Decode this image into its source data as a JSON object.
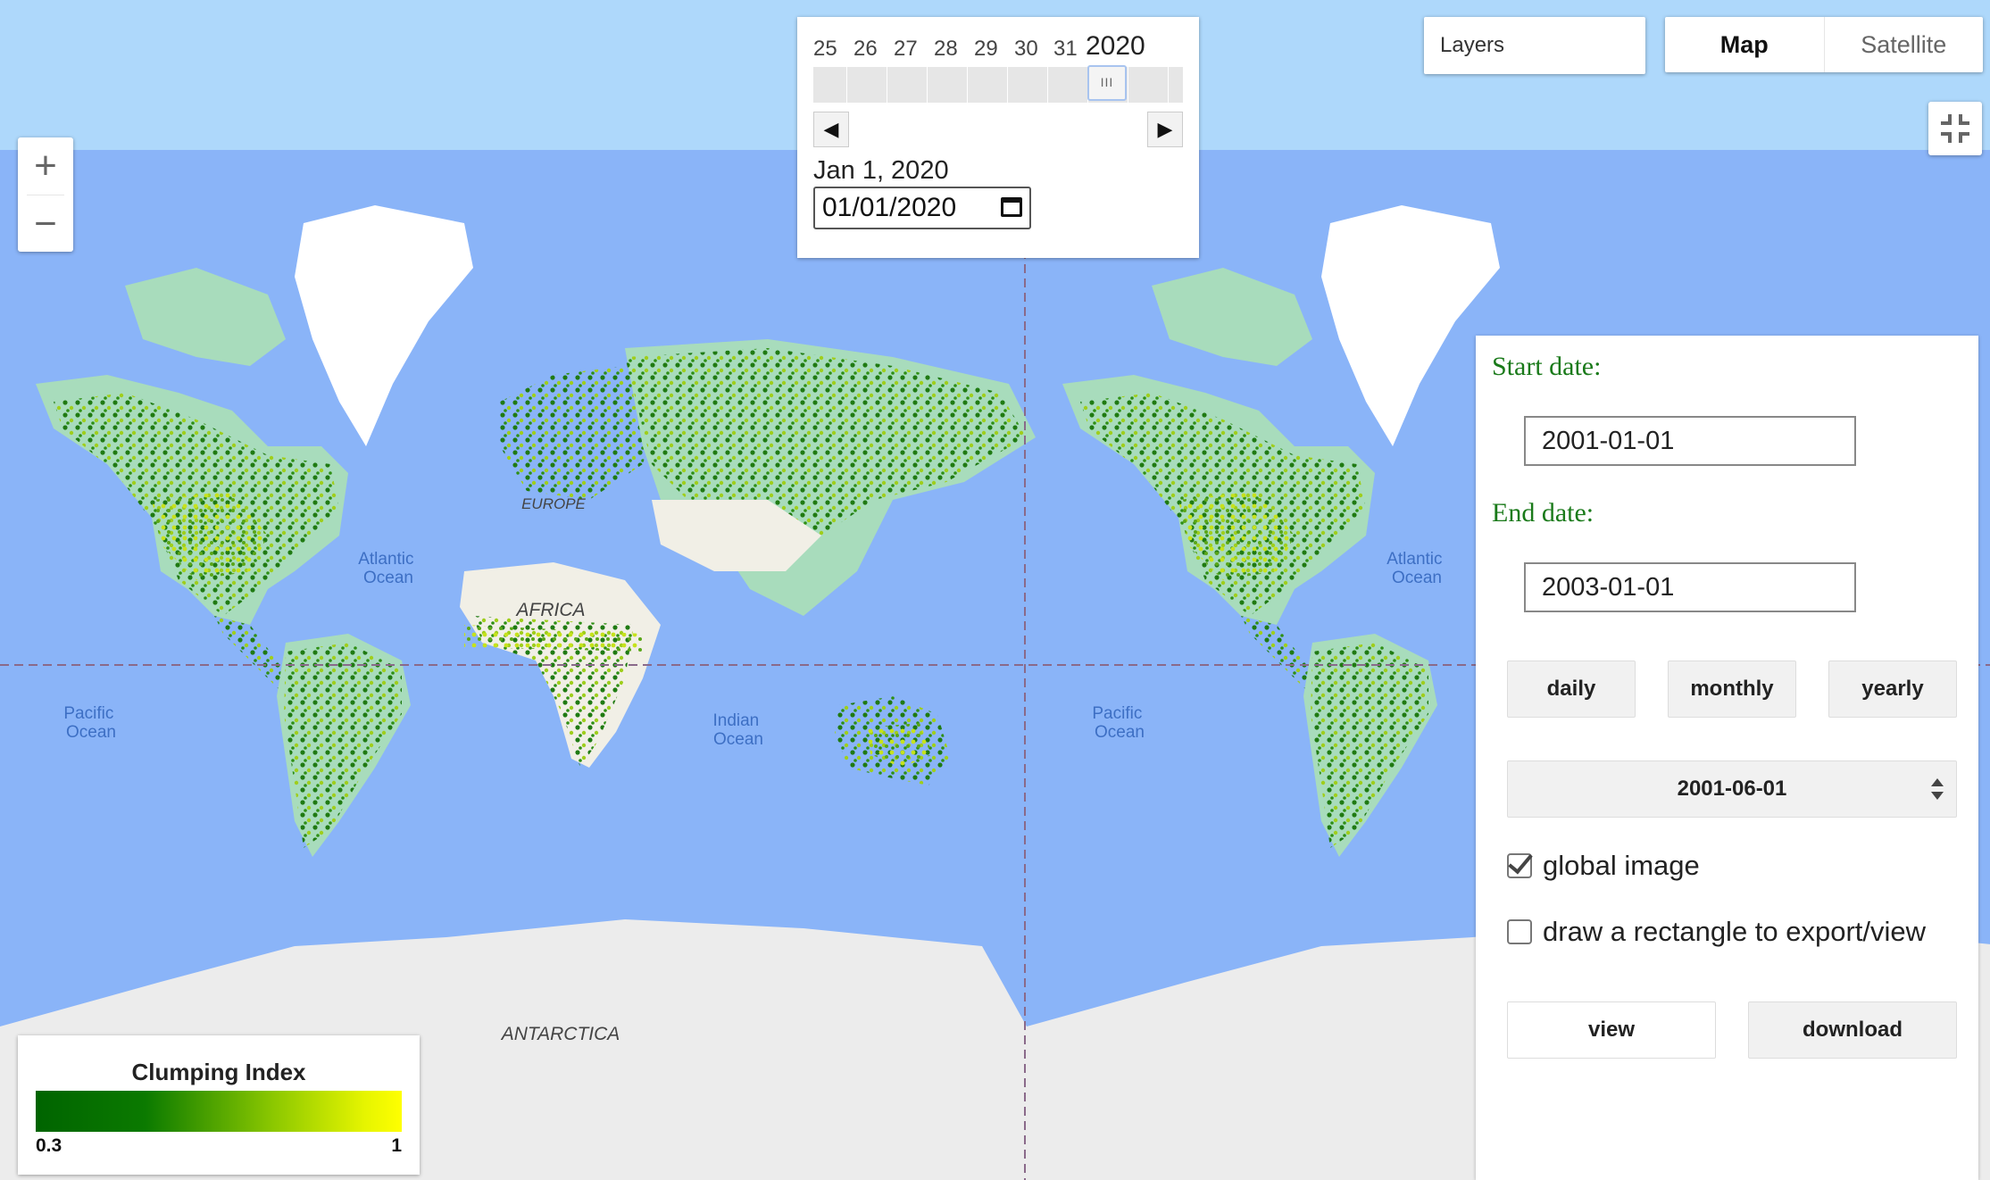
{
  "map": {
    "labels": {
      "atlantic_1": [
        "Atlantic",
        "Ocean"
      ],
      "atlantic_2": [
        "Atlantic",
        "Ocean"
      ],
      "pacific_1": [
        "Pacific",
        "Ocean"
      ],
      "pacific_2": [
        "Pacific",
        "Ocean"
      ],
      "indian": [
        "Indian",
        "Ocean"
      ],
      "africa": "AFRICA",
      "europe": "EUROPE",
      "antarctica": "ANTARCTICA"
    },
    "colors": {
      "ocean": "#8ab4f8",
      "sky": "#aed8fb",
      "land": "#a8dcbc",
      "ice": "#ececec",
      "desert": "#f1efe6",
      "dark_green": "#1f7a12",
      "yellow_green": "#c4df18"
    }
  },
  "zoom": {
    "in_symbol": "+",
    "out_symbol": "−"
  },
  "timeline": {
    "ticks": [
      "25",
      "26",
      "27",
      "28",
      "29",
      "30",
      "31"
    ],
    "year": "2020",
    "date_label": "Jan 1, 2020",
    "date_value": "01/01/2020",
    "thumb_glyph": "III",
    "prev_symbol": "◀",
    "next_symbol": "▶"
  },
  "layers_label": "Layers",
  "map_type": {
    "map": "Map",
    "satellite": "Satellite"
  },
  "sidebar": {
    "start_label": "Start date:",
    "start_value": "2001-01-01",
    "end_label": "End date:",
    "end_value": "2003-01-01",
    "buttons": {
      "daily": "daily",
      "monthly": "monthly",
      "yearly": "yearly"
    },
    "selected_date": "2001-06-01",
    "global_image": {
      "label": "global image",
      "checked": true
    },
    "draw_rect": {
      "label": "draw a rectangle to export/view",
      "checked": false
    },
    "view_label": "view",
    "download_label": "download"
  },
  "legend": {
    "title": "Clumping Index",
    "min": "0.3",
    "max": "1",
    "colors": [
      "#006400",
      "#ffff00"
    ]
  }
}
